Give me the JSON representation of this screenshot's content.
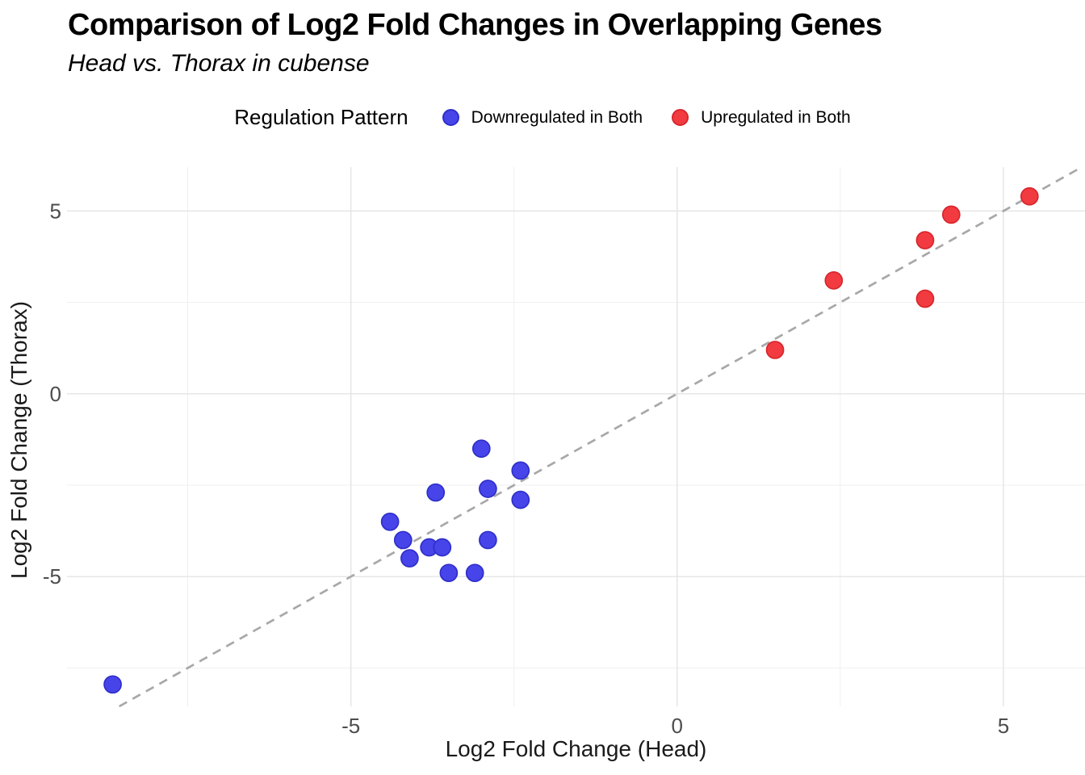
{
  "chart_data": {
    "type": "scatter",
    "title": "Comparison of Log2 Fold Changes in Overlapping Genes",
    "subtitle": "Head vs. Thorax in cubense",
    "xlabel": "Log2 Fold Change (Head)",
    "ylabel": "Log2 Fold Change (Thorax)",
    "xlim": [
      -9.35,
      6.25
    ],
    "ylim": [
      -8.55,
      6.2
    ],
    "x_ticks": [
      -5,
      0,
      5
    ],
    "y_ticks": [
      -5,
      0,
      5
    ],
    "x_minor_ticks": [
      -7.5,
      -2.5,
      2.5
    ],
    "y_minor_ticks": [
      -7.5,
      -2.5,
      2.5
    ],
    "grid": true,
    "legend_title": "Regulation Pattern",
    "legend_position": "top",
    "reference_line": {
      "type": "identity y = x",
      "style": "dashed",
      "color": "#a8a8a8"
    },
    "series": [
      {
        "name": "Downregulated in Both",
        "color": "#4745e9",
        "edge_color": "#2f2fca",
        "points": [
          [
            -8.65,
            -7.95
          ],
          [
            -4.4,
            -3.5
          ],
          [
            -4.2,
            -4.0
          ],
          [
            -4.1,
            -4.5
          ],
          [
            -3.8,
            -4.2
          ],
          [
            -3.7,
            -2.7
          ],
          [
            -3.6,
            -4.2
          ],
          [
            -3.5,
            -4.9
          ],
          [
            -3.1,
            -4.9
          ],
          [
            -3.0,
            -1.5
          ],
          [
            -2.9,
            -2.6
          ],
          [
            -2.9,
            -4.0
          ],
          [
            -2.4,
            -2.1
          ],
          [
            -2.4,
            -2.9
          ]
        ]
      },
      {
        "name": "Upregulated in Both",
        "color": "#f23b40",
        "edge_color": "#d8262c",
        "points": [
          [
            1.5,
            1.2
          ],
          [
            2.4,
            3.1
          ],
          [
            3.8,
            2.6
          ],
          [
            3.8,
            4.2
          ],
          [
            4.2,
            4.9
          ],
          [
            5.4,
            5.4
          ]
        ]
      }
    ],
    "palette": {
      "major_grid": "#e4e4e4",
      "minor_grid": "#efefef",
      "tick_text": "#4d4d4d",
      "axis_title_text": "#1a1a1a"
    }
  }
}
